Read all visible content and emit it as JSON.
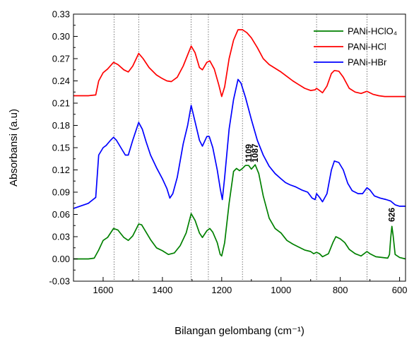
{
  "chart_data": {
    "type": "line",
    "xlabel": "Bilangan gelombang (cm⁻¹)",
    "ylabel": "Absorbansi (a.u)",
    "xlim": [
      1700,
      580
    ],
    "ylim": [
      -0.03,
      0.33
    ],
    "x_ticks": [
      1600,
      1400,
      1200,
      1000,
      800,
      600
    ],
    "y_ticks": [
      -0.03,
      0.0,
      0.03,
      0.06,
      0.09,
      0.12,
      0.15,
      0.18,
      0.21,
      0.24,
      0.27,
      0.3,
      0.33
    ],
    "x_tick_labels": [
      "1600",
      "1400",
      "1200",
      "1000",
      "800",
      "600"
    ],
    "y_tick_labels": [
      "-0.03",
      "0.00",
      "0.03",
      "0.06",
      "0.09",
      "0.12",
      "0.15",
      "0.18",
      "0.21",
      "0.24",
      "0.27",
      "0.30",
      "0.33"
    ],
    "reference_lines_x": [
      1563,
      1480,
      1303,
      1245,
      1130,
      880,
      710
    ],
    "legend_position": "top-right",
    "series": [
      {
        "name": "PANi-HClO₄",
        "color": "#008000",
        "points": [
          [
            1700,
            0.0
          ],
          [
            1650,
            0.0
          ],
          [
            1630,
            0.001
          ],
          [
            1615,
            0.012
          ],
          [
            1600,
            0.025
          ],
          [
            1585,
            0.029
          ],
          [
            1565,
            0.041
          ],
          [
            1550,
            0.039
          ],
          [
            1530,
            0.029
          ],
          [
            1515,
            0.025
          ],
          [
            1500,
            0.031
          ],
          [
            1480,
            0.047
          ],
          [
            1470,
            0.046
          ],
          [
            1455,
            0.036
          ],
          [
            1440,
            0.026
          ],
          [
            1420,
            0.015
          ],
          [
            1400,
            0.011
          ],
          [
            1380,
            0.006
          ],
          [
            1360,
            0.008
          ],
          [
            1340,
            0.018
          ],
          [
            1320,
            0.035
          ],
          [
            1303,
            0.061
          ],
          [
            1290,
            0.052
          ],
          [
            1275,
            0.035
          ],
          [
            1265,
            0.029
          ],
          [
            1250,
            0.038
          ],
          [
            1240,
            0.041
          ],
          [
            1230,
            0.036
          ],
          [
            1215,
            0.022
          ],
          [
            1205,
            0.006
          ],
          [
            1200,
            0.004
          ],
          [
            1190,
            0.022
          ],
          [
            1175,
            0.075
          ],
          [
            1160,
            0.118
          ],
          [
            1150,
            0.122
          ],
          [
            1140,
            0.119
          ],
          [
            1130,
            0.122
          ],
          [
            1120,
            0.126
          ],
          [
            1109,
            0.126
          ],
          [
            1100,
            0.121
          ],
          [
            1087,
            0.127
          ],
          [
            1075,
            0.115
          ],
          [
            1060,
            0.085
          ],
          [
            1040,
            0.055
          ],
          [
            1020,
            0.041
          ],
          [
            1000,
            0.035
          ],
          [
            980,
            0.025
          ],
          [
            960,
            0.02
          ],
          [
            940,
            0.016
          ],
          [
            920,
            0.012
          ],
          [
            900,
            0.01
          ],
          [
            890,
            0.007
          ],
          [
            880,
            0.009
          ],
          [
            870,
            0.007
          ],
          [
            860,
            0.003
          ],
          [
            840,
            0.007
          ],
          [
            825,
            0.022
          ],
          [
            815,
            0.03
          ],
          [
            800,
            0.027
          ],
          [
            785,
            0.022
          ],
          [
            770,
            0.013
          ],
          [
            750,
            0.007
          ],
          [
            730,
            0.004
          ],
          [
            710,
            0.01
          ],
          [
            700,
            0.007
          ],
          [
            680,
            0.003
          ],
          [
            660,
            0.002
          ],
          [
            640,
            0.001
          ],
          [
            634,
            0.006
          ],
          [
            630,
            0.028
          ],
          [
            626,
            0.044
          ],
          [
            622,
            0.032
          ],
          [
            615,
            0.006
          ],
          [
            600,
            0.002
          ],
          [
            580,
            0.0
          ]
        ]
      },
      {
        "name": "PANi-HCl",
        "color": "#ff0000",
        "points": [
          [
            1700,
            0.22
          ],
          [
            1650,
            0.22
          ],
          [
            1625,
            0.221
          ],
          [
            1615,
            0.24
          ],
          [
            1600,
            0.251
          ],
          [
            1585,
            0.256
          ],
          [
            1565,
            0.265
          ],
          [
            1550,
            0.262
          ],
          [
            1530,
            0.255
          ],
          [
            1515,
            0.252
          ],
          [
            1500,
            0.26
          ],
          [
            1480,
            0.277
          ],
          [
            1465,
            0.27
          ],
          [
            1445,
            0.258
          ],
          [
            1420,
            0.248
          ],
          [
            1400,
            0.243
          ],
          [
            1385,
            0.24
          ],
          [
            1370,
            0.239
          ],
          [
            1350,
            0.245
          ],
          [
            1330,
            0.26
          ],
          [
            1303,
            0.287
          ],
          [
            1290,
            0.278
          ],
          [
            1275,
            0.258
          ],
          [
            1265,
            0.255
          ],
          [
            1250,
            0.265
          ],
          [
            1240,
            0.267
          ],
          [
            1225,
            0.256
          ],
          [
            1210,
            0.235
          ],
          [
            1200,
            0.219
          ],
          [
            1190,
            0.232
          ],
          [
            1175,
            0.27
          ],
          [
            1160,
            0.295
          ],
          [
            1145,
            0.309
          ],
          [
            1130,
            0.309
          ],
          [
            1115,
            0.305
          ],
          [
            1100,
            0.298
          ],
          [
            1080,
            0.285
          ],
          [
            1060,
            0.27
          ],
          [
            1040,
            0.262
          ],
          [
            1020,
            0.257
          ],
          [
            1000,
            0.252
          ],
          [
            980,
            0.246
          ],
          [
            960,
            0.24
          ],
          [
            940,
            0.235
          ],
          [
            920,
            0.23
          ],
          [
            900,
            0.227
          ],
          [
            885,
            0.228
          ],
          [
            880,
            0.23
          ],
          [
            870,
            0.227
          ],
          [
            860,
            0.224
          ],
          [
            845,
            0.233
          ],
          [
            830,
            0.25
          ],
          [
            820,
            0.254
          ],
          [
            805,
            0.253
          ],
          [
            790,
            0.245
          ],
          [
            770,
            0.23
          ],
          [
            750,
            0.225
          ],
          [
            730,
            0.223
          ],
          [
            710,
            0.226
          ],
          [
            690,
            0.222
          ],
          [
            670,
            0.22
          ],
          [
            650,
            0.219
          ],
          [
            630,
            0.219
          ],
          [
            610,
            0.219
          ],
          [
            580,
            0.219
          ]
        ]
      },
      {
        "name": "PANi-HBr",
        "color": "#0000ff",
        "points": [
          [
            1700,
            0.068
          ],
          [
            1650,
            0.075
          ],
          [
            1625,
            0.083
          ],
          [
            1615,
            0.14
          ],
          [
            1600,
            0.15
          ],
          [
            1590,
            0.153
          ],
          [
            1575,
            0.16
          ],
          [
            1565,
            0.164
          ],
          [
            1555,
            0.16
          ],
          [
            1540,
            0.15
          ],
          [
            1525,
            0.14
          ],
          [
            1515,
            0.14
          ],
          [
            1500,
            0.16
          ],
          [
            1480,
            0.184
          ],
          [
            1468,
            0.175
          ],
          [
            1455,
            0.158
          ],
          [
            1440,
            0.14
          ],
          [
            1420,
            0.123
          ],
          [
            1400,
            0.108
          ],
          [
            1385,
            0.095
          ],
          [
            1375,
            0.082
          ],
          [
            1365,
            0.088
          ],
          [
            1350,
            0.11
          ],
          [
            1330,
            0.155
          ],
          [
            1315,
            0.18
          ],
          [
            1303,
            0.207
          ],
          [
            1290,
            0.185
          ],
          [
            1275,
            0.16
          ],
          [
            1265,
            0.152
          ],
          [
            1250,
            0.165
          ],
          [
            1242,
            0.165
          ],
          [
            1230,
            0.15
          ],
          [
            1215,
            0.12
          ],
          [
            1205,
            0.095
          ],
          [
            1198,
            0.08
          ],
          [
            1190,
            0.11
          ],
          [
            1175,
            0.175
          ],
          [
            1160,
            0.215
          ],
          [
            1145,
            0.242
          ],
          [
            1135,
            0.237
          ],
          [
            1120,
            0.218
          ],
          [
            1100,
            0.188
          ],
          [
            1080,
            0.16
          ],
          [
            1060,
            0.14
          ],
          [
            1040,
            0.125
          ],
          [
            1020,
            0.115
          ],
          [
            1000,
            0.108
          ],
          [
            985,
            0.103
          ],
          [
            970,
            0.1
          ],
          [
            950,
            0.097
          ],
          [
            930,
            0.093
          ],
          [
            910,
            0.09
          ],
          [
            895,
            0.082
          ],
          [
            885,
            0.08
          ],
          [
            880,
            0.088
          ],
          [
            870,
            0.083
          ],
          [
            860,
            0.077
          ],
          [
            845,
            0.088
          ],
          [
            830,
            0.12
          ],
          [
            820,
            0.132
          ],
          [
            805,
            0.13
          ],
          [
            790,
            0.12
          ],
          [
            775,
            0.102
          ],
          [
            760,
            0.092
          ],
          [
            740,
            0.088
          ],
          [
            725,
            0.088
          ],
          [
            710,
            0.096
          ],
          [
            700,
            0.093
          ],
          [
            685,
            0.085
          ],
          [
            665,
            0.082
          ],
          [
            645,
            0.08
          ],
          [
            630,
            0.078
          ],
          [
            615,
            0.073
          ],
          [
            600,
            0.071
          ],
          [
            580,
            0.071
          ]
        ]
      }
    ],
    "annotations": [
      {
        "text": "1109",
        "x": 1109,
        "y": 0.13
      },
      {
        "text": "1087",
        "x": 1087,
        "y": 0.13
      },
      {
        "text": "626",
        "x": 626,
        "y": 0.05
      }
    ]
  }
}
